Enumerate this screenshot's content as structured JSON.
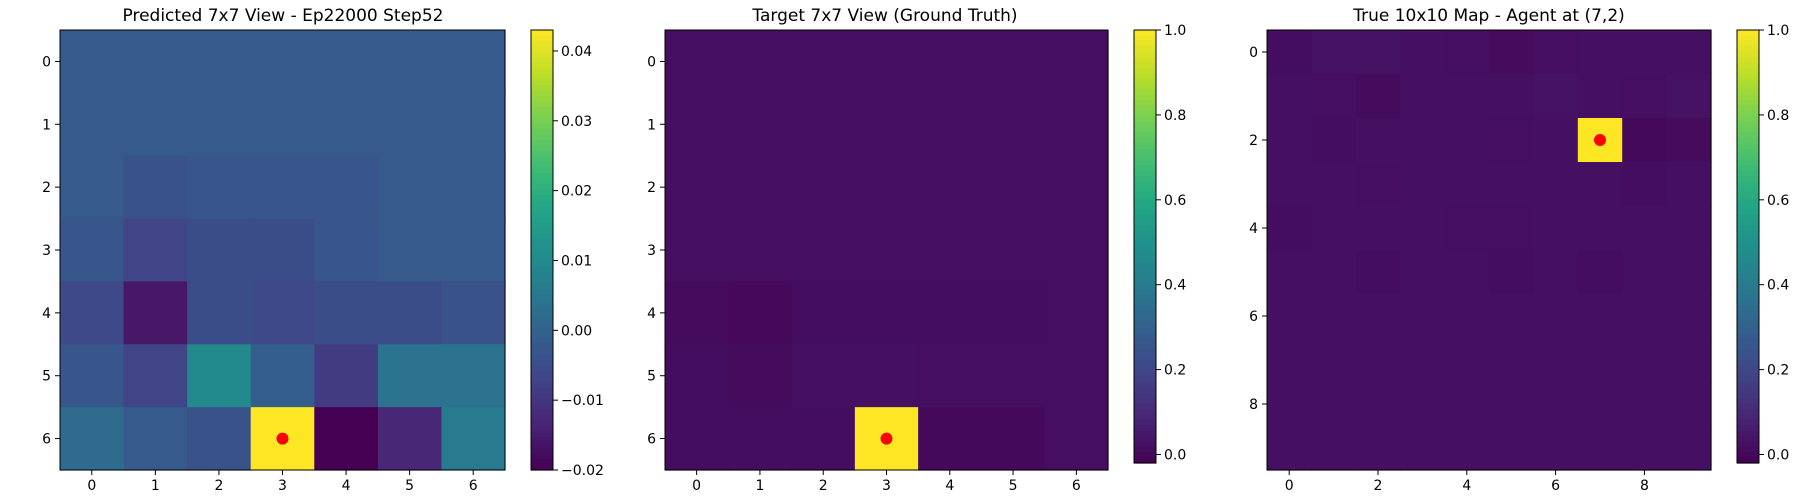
{
  "chart_data": [
    {
      "type": "heatmap",
      "title": "Predicted 7x7 View - Ep22000 Step52",
      "grid_size": 7,
      "x_ticks": [
        0,
        1,
        2,
        3,
        4,
        5,
        6
      ],
      "y_ticks": [
        0,
        1,
        2,
        3,
        4,
        5,
        6
      ],
      "values": [
        [
          -0.002,
          -0.002,
          -0.002,
          -0.002,
          -0.002,
          -0.002,
          -0.002
        ],
        [
          -0.002,
          -0.002,
          -0.002,
          -0.002,
          -0.002,
          -0.002,
          -0.002
        ],
        [
          -0.002,
          -0.004,
          -0.003,
          -0.003,
          -0.003,
          -0.002,
          -0.002
        ],
        [
          -0.003,
          -0.007,
          -0.005,
          -0.005,
          -0.003,
          -0.002,
          -0.002
        ],
        [
          -0.006,
          -0.016,
          -0.005,
          -0.006,
          -0.005,
          -0.005,
          -0.004
        ],
        [
          -0.003,
          -0.007,
          0.01,
          -0.001,
          -0.009,
          0.004,
          0.004
        ],
        [
          0.002,
          -0.002,
          -0.004,
          0.043,
          -0.02,
          -0.013,
          0.006
        ]
      ],
      "colorbar": {
        "min": -0.02,
        "max": 0.043,
        "ticks": [
          0.04,
          0.03,
          0.02,
          0.01,
          0.0,
          -0.01,
          -0.02
        ],
        "tick_labels": [
          "0.04",
          "0.03",
          "0.02",
          "0.01",
          "0.00",
          "−0.01",
          "−0.02"
        ]
      },
      "marker": {
        "x": 3,
        "y": 6,
        "color": "#ff0000"
      }
    },
    {
      "type": "heatmap",
      "title": "Target 7x7 View (Ground Truth)",
      "grid_size": 7,
      "x_ticks": [
        0,
        1,
        2,
        3,
        4,
        5,
        6
      ],
      "y_ticks": [
        0,
        1,
        2,
        3,
        4,
        5,
        6
      ],
      "values": [
        [
          0.02,
          0.02,
          0.02,
          0.02,
          0.02,
          0.02,
          0.02
        ],
        [
          0.02,
          0.02,
          0.02,
          0.02,
          0.02,
          0.02,
          0.02
        ],
        [
          0.02,
          0.02,
          0.02,
          0.02,
          0.02,
          0.02,
          0.02
        ],
        [
          0.02,
          0.02,
          0.02,
          0.02,
          0.02,
          0.02,
          0.02
        ],
        [
          0.01,
          0.0,
          0.015,
          0.015,
          0.015,
          0.015,
          0.02
        ],
        [
          0.015,
          0.01,
          0.025,
          0.025,
          0.02,
          0.02,
          0.02
        ],
        [
          0.015,
          0.015,
          0.015,
          1.0,
          0.005,
          0.005,
          0.02
        ]
      ],
      "colorbar": {
        "min": -0.02,
        "max": 1.0,
        "ticks": [
          1.0,
          0.8,
          0.6,
          0.4,
          0.2,
          0.0
        ],
        "tick_labels": [
          "1.0",
          "0.8",
          "0.6",
          "0.4",
          "0.2",
          "0.0"
        ]
      },
      "marker": {
        "x": 3,
        "y": 6,
        "color": "#ff0000"
      }
    },
    {
      "type": "heatmap",
      "title": "True 10x10 Map - Agent at (7,2)",
      "grid_size": 10,
      "x_ticks": [
        0,
        2,
        4,
        6,
        8
      ],
      "y_ticks": [
        0,
        2,
        4,
        6,
        8
      ],
      "values": [
        [
          0.015,
          0.03,
          0.03,
          0.025,
          0.02,
          0.01,
          0.02,
          0.025,
          0.025,
          0.025
        ],
        [
          0.025,
          0.02,
          0.01,
          0.025,
          0.025,
          0.025,
          0.03,
          0.025,
          0.02,
          0.03
        ],
        [
          0.025,
          0.015,
          0.025,
          0.025,
          0.025,
          0.02,
          0.025,
          1.0,
          0.005,
          0.01
        ],
        [
          0.025,
          0.025,
          0.02,
          0.025,
          0.025,
          0.025,
          0.025,
          0.025,
          0.015,
          0.025
        ],
        [
          0.015,
          0.025,
          0.025,
          0.025,
          0.02,
          0.02,
          0.025,
          0.025,
          0.025,
          0.025
        ],
        [
          0.025,
          0.025,
          0.015,
          0.025,
          0.025,
          0.015,
          0.025,
          0.015,
          0.025,
          0.025
        ],
        [
          0.025,
          0.025,
          0.025,
          0.025,
          0.025,
          0.025,
          0.025,
          0.025,
          0.025,
          0.025
        ],
        [
          0.025,
          0.025,
          0.025,
          0.025,
          0.025,
          0.025,
          0.025,
          0.025,
          0.025,
          0.025
        ],
        [
          0.025,
          0.025,
          0.025,
          0.025,
          0.025,
          0.025,
          0.025,
          0.025,
          0.025,
          0.025
        ],
        [
          0.025,
          0.025,
          0.025,
          0.025,
          0.025,
          0.025,
          0.025,
          0.025,
          0.025,
          0.025
        ]
      ],
      "colorbar": {
        "min": -0.02,
        "max": 1.0,
        "ticks": [
          1.0,
          0.8,
          0.6,
          0.4,
          0.2,
          0.0
        ],
        "tick_labels": [
          "1.0",
          "0.8",
          "0.6",
          "0.4",
          "0.2",
          "0.0"
        ]
      },
      "marker": {
        "x": 7,
        "y": 2,
        "color": "#ff0000"
      }
    }
  ],
  "colormap": "viridis"
}
